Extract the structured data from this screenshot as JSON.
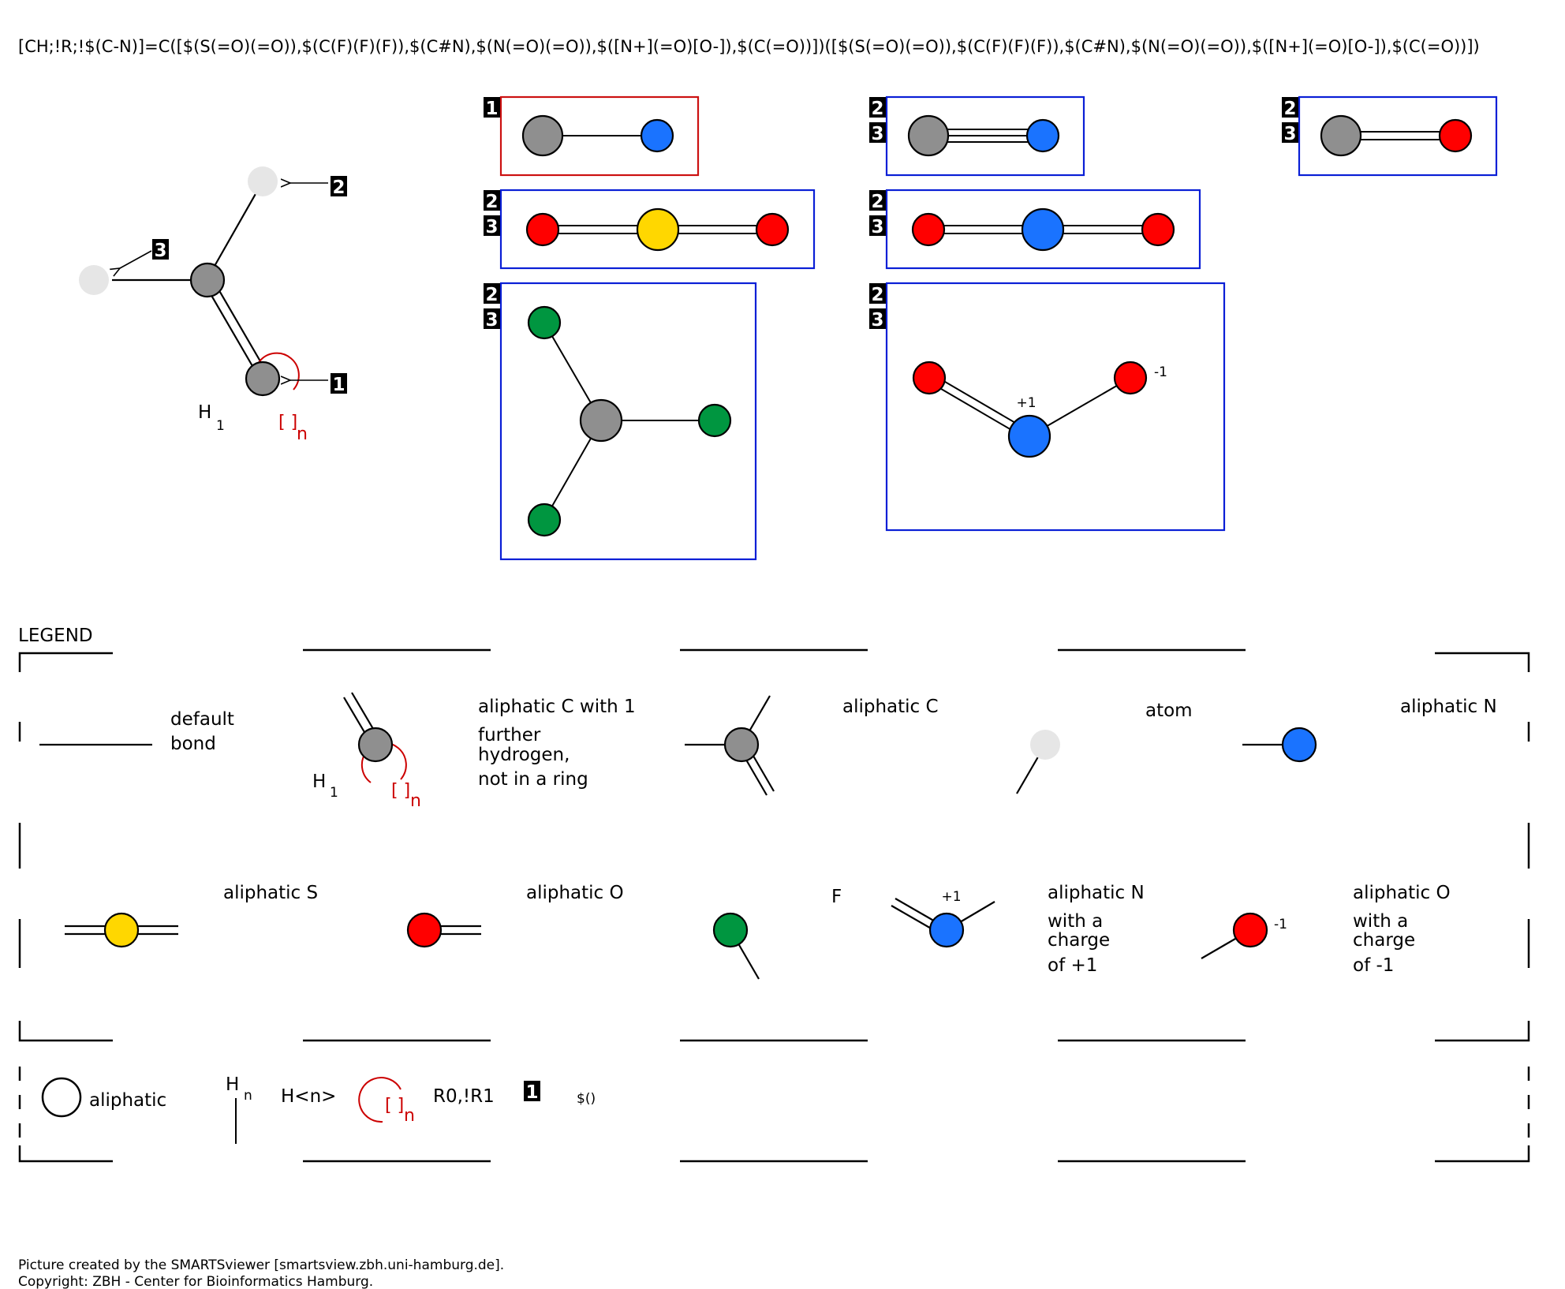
{
  "smarts": "[CH;!R;!$(C-N)]=C([$(S(=O)(=O)),$(C(F)(F)(F)),$(C#N),$(N(=O)(=O)),$([N+](=O)[O-]),$(C(=O))])([$(S(=O)(=O)),$(C(F)(F)(F)),$(C#N),$(N(=O)(=O)),$([N+](=O)[O-]),$(C(=O))])",
  "main": {
    "badges": [
      "1",
      "2",
      "3"
    ],
    "h_label": "H",
    "h_count": "1",
    "ring_label": "[ ]",
    "ring_sub": "n"
  },
  "groups": {
    "badge_1": "1",
    "badge_2": "2",
    "badge_3": "3",
    "charge_plus": "+1",
    "charge_minus": "-1"
  },
  "legend": {
    "title": "LEGEND",
    "default_bond": [
      "default",
      "bond"
    ],
    "aliphatic_c_h1": [
      "aliphatic C with 1",
      "further",
      "hydrogen,",
      "not in a ring"
    ],
    "aliphatic_c": "aliphatic C",
    "atom": "atom",
    "aliphatic_n": "aliphatic N",
    "aliphatic_s": "aliphatic S",
    "aliphatic_o": "aliphatic O",
    "f": "F",
    "n_plus": [
      "aliphatic N",
      "with a",
      "charge",
      "of +1"
    ],
    "o_minus": [
      "aliphatic O",
      "with a",
      "charge",
      "of -1"
    ],
    "aliphatic": "aliphatic",
    "hn_h": "H",
    "hn_n": "n",
    "hn_text": "H<n>",
    "ring_text": "R0,!R1",
    "badge": "1",
    "recursive": "$()"
  },
  "colors": {
    "carbon": "#8f8f8f",
    "nitrogen": "#1a73ff",
    "oxygen": "#ff0000",
    "sulfur": "#ffd700",
    "fluorine": "#009640",
    "any_atom": "#e6e6e6",
    "box_red": "#cc1111",
    "box_blue": "#0a1fd6",
    "ring_red": "#cc0000"
  },
  "footer": {
    "line1": "Picture created by the SMARTSviewer [smartsview.zbh.uni-hamburg.de].",
    "line2": "Copyright: ZBH - Center for Bioinformatics Hamburg."
  }
}
